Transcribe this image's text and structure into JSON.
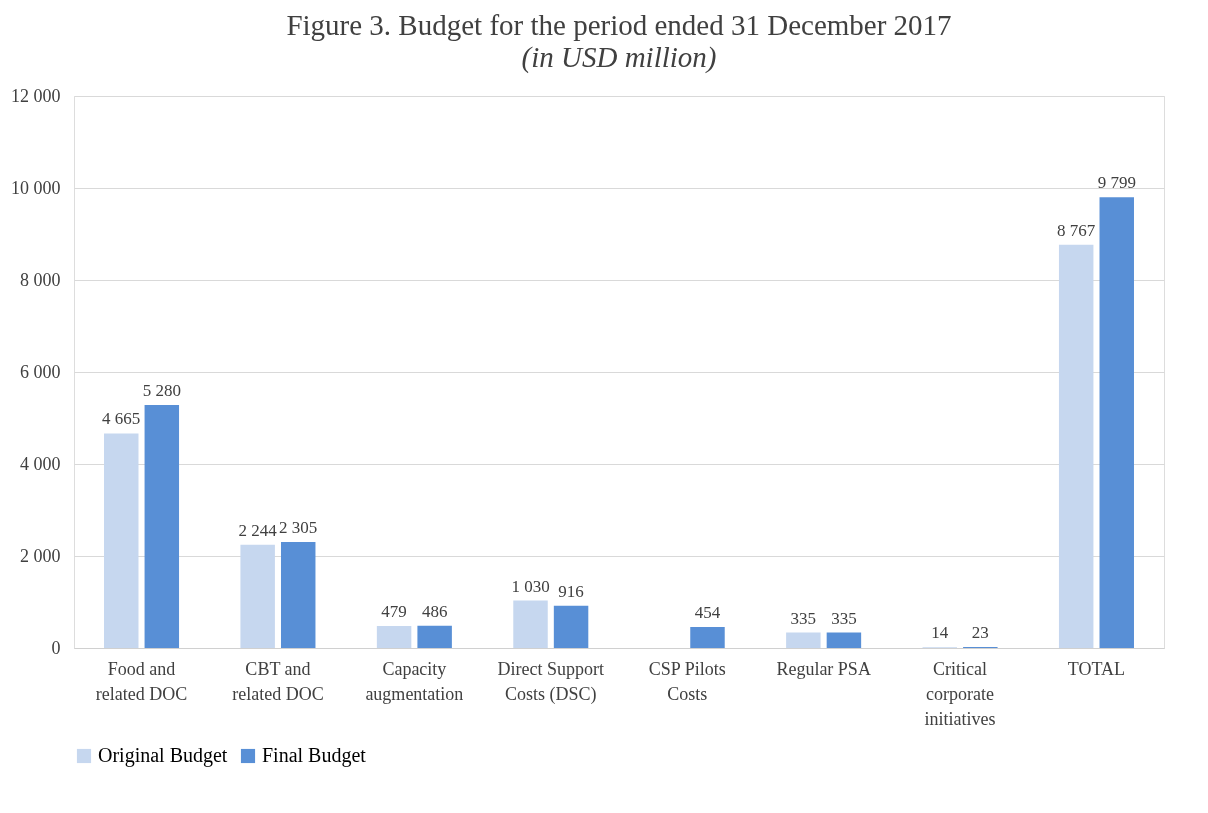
{
  "chart_data": {
    "type": "bar",
    "title": "Figure 3. Budget for the period ended 31 December 2017",
    "subtitle": "(in USD million)",
    "categories": [
      "Food and\nrelated DOC",
      "CBT and\nrelated DOC",
      "Capacity\naugmentation",
      "Direct Support\nCosts (DSC)",
      "CSP Pilots\nCosts",
      "Regular PSA",
      "Critical\ncorporate\ninitiatives",
      "TOTAL"
    ],
    "series": [
      {
        "name": "Original Budget",
        "color": "#c6d7ef",
        "values": [
          4665,
          2244,
          479,
          1030,
          null,
          335,
          14,
          8767
        ],
        "value_labels": [
          "4 665",
          "2 244",
          "479",
          "1 030",
          null,
          "335",
          "14",
          "8 767"
        ]
      },
      {
        "name": "Final Budget",
        "color": "#588fd6",
        "values": [
          5280,
          2305,
          486,
          916,
          454,
          335,
          23,
          9799
        ],
        "value_labels": [
          "5 280",
          "2 305",
          "486",
          "916",
          "454",
          "335",
          "23",
          "9 799"
        ]
      }
    ],
    "ylim": [
      0,
      12000
    ],
    "yticks": [
      {
        "value": 0,
        "label": "0"
      },
      {
        "value": 2000,
        "label": "2 000"
      },
      {
        "value": 4000,
        "label": "4 000"
      },
      {
        "value": 6000,
        "label": "6 000"
      },
      {
        "value": 8000,
        "label": "8 000"
      },
      {
        "value": 10000,
        "label": "10 000"
      },
      {
        "value": 12000,
        "label": "12 000"
      }
    ],
    "grid": "y",
    "legend": "bottom"
  }
}
